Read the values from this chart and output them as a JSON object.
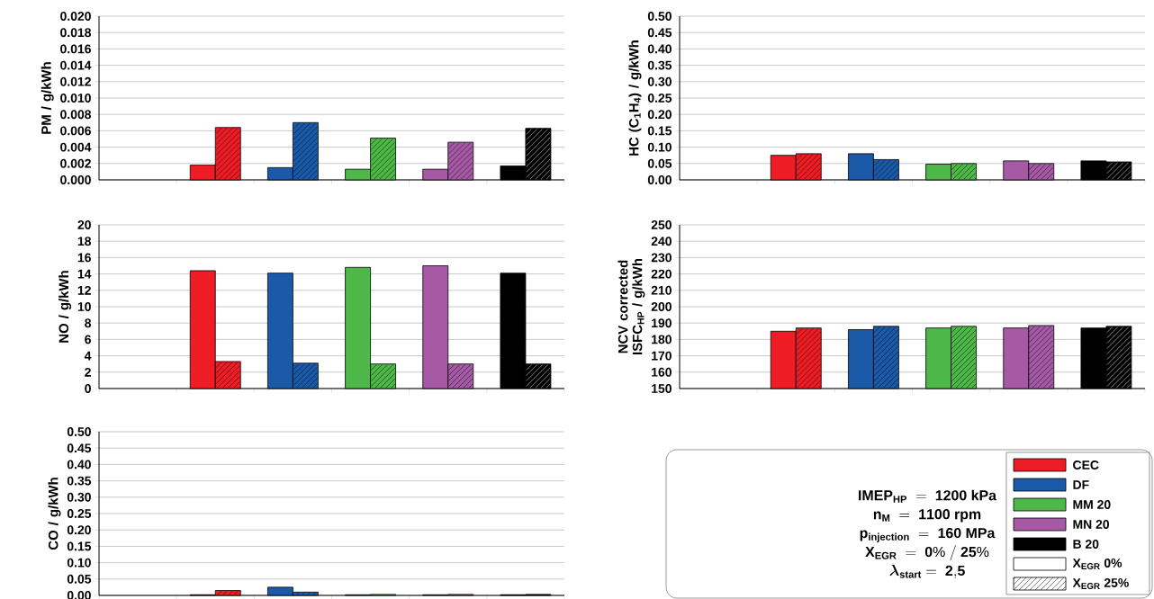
{
  "chart_data": [
    {
      "type": "bar",
      "ylabel": "PM / g/kWh",
      "categories": [
        null,
        null,
        null,
        null,
        null,
        null
      ],
      "ylim": [
        0,
        0.02
      ],
      "yticks": [
        {
          "value": 0,
          "label": "0.000"
        },
        {
          "value": 0.002,
          "label": "0.002"
        },
        {
          "value": 0.004,
          "label": "0.004"
        },
        {
          "value": 0.006,
          "label": "0.006"
        },
        {
          "value": 0.008,
          "label": "0.008"
        },
        {
          "value": 0.01,
          "label": "0.010"
        },
        {
          "value": 0.012,
          "label": "0.012"
        },
        {
          "value": 0.014,
          "label": "0.014"
        },
        {
          "value": 0.016,
          "label": "0.016"
        },
        {
          "value": 0.018,
          "label": "0.018"
        },
        {
          "value": 0.02,
          "label": "0.020"
        }
      ],
      "grid": "y",
      "series": [
        {
          "colors": [
            null,
            "#ee1c25",
            "#1a5aa8",
            "#4db848",
            "#a65aa6",
            "#000000"
          ],
          "values": [
            null,
            0.0018,
            0.0015,
            0.0013,
            0.0013,
            0.0017
          ]
        },
        {
          "colors": [
            null,
            "#ee1c25",
            "#1a5aa8",
            "#4db848",
            "#a65aa6",
            "#000000"
          ],
          "values": [
            null,
            0.0064,
            0.007,
            0.0051,
            0.0046,
            0.0063
          ]
        }
      ]
    },
    {
      "type": "bar",
      "ylabel": "HC (C$_{1}$H$_{4}$) / g/kWh",
      "categories": [
        null,
        null,
        null,
        null,
        null,
        null
      ],
      "ylim": [
        0,
        0.5
      ],
      "yticks": [
        {
          "value": 0,
          "label": "0.00"
        },
        0.05,
        {
          "value": 0.1,
          "label": "0.10"
        },
        0.15,
        {
          "value": 0.2,
          "label": "0.20"
        },
        0.25,
        {
          "value": 0.3,
          "label": "0.30"
        },
        0.35,
        {
          "value": 0.4,
          "label": "0.40"
        },
        0.45,
        {
          "value": 0.5,
          "label": "0.50"
        }
      ],
      "grid": "y",
      "series": [
        {
          "colors": [
            null,
            "#ee1c25",
            "#1a5aa8",
            "#4db848",
            "#a65aa6",
            "#000000"
          ],
          "values": [
            null,
            0.075,
            0.08,
            0.048,
            0.058,
            0.058
          ]
        },
        {
          "colors": [
            null,
            "#ee1c25",
            "#1a5aa8",
            "#4db848",
            "#a65aa6",
            "#000000"
          ],
          "values": [
            null,
            0.08,
            0.062,
            0.05,
            0.05,
            0.055
          ]
        }
      ]
    },
    {
      "type": "bar",
      "ylabel": "NO / g/kWh",
      "categories": [
        null,
        null,
        null,
        null,
        null,
        null
      ],
      "ylim": [
        0,
        20
      ],
      "yticks": [
        0,
        2,
        4,
        6,
        8,
        10,
        12,
        14,
        16,
        18,
        20
      ],
      "grid": "y",
      "series": [
        {
          "colors": [
            null,
            "#ee1c25",
            "#1a5aa8",
            "#4db848",
            "#a65aa6",
            "#000000"
          ],
          "values": [
            null,
            14.4,
            14.1,
            14.8,
            15.0,
            14.1
          ]
        },
        {
          "colors": [
            null,
            "#ee1c25",
            "#1a5aa8",
            "#4db848",
            "#a65aa6",
            "#000000"
          ],
          "values": [
            null,
            3.3,
            3.1,
            3.0,
            3.0,
            3.0
          ]
        }
      ]
    },
    {
      "type": "bar",
      "ylabel": "NCV corrected ISFC$_{HP}$ / g/kWh",
      "categories": [
        null,
        null,
        null,
        null,
        null,
        null
      ],
      "ylim": [
        150,
        250
      ],
      "yticks": [
        150,
        160,
        170,
        180,
        190,
        200,
        210,
        220,
        230,
        240,
        250
      ],
      "grid": "y",
      "series": [
        {
          "colors": [
            null,
            "#ee1c25",
            "#1a5aa8",
            "#4db848",
            "#a65aa6",
            "#000000"
          ],
          "values": [
            null,
            185,
            186,
            187,
            187,
            187
          ]
        },
        {
          "colors": [
            null,
            "#ee1c25",
            "#1a5aa8",
            "#4db848",
            "#a65aa6",
            "#000000"
          ],
          "values": [
            null,
            187,
            188,
            188,
            188.5,
            188
          ]
        }
      ]
    },
    {
      "type": "bar",
      "ylabel": "CO / g/kWh",
      "categories": [
        null,
        null,
        null,
        null,
        null,
        null
      ],
      "ylim": [
        0,
        0.5
      ],
      "yticks": [
        {
          "value": 0,
          "label": "0.00"
        },
        0.05,
        {
          "value": 0.1,
          "label": "0.10"
        },
        0.15,
        {
          "value": 0.2,
          "label": "0.20"
        },
        0.25,
        {
          "value": 0.3,
          "label": "0.30"
        },
        0.35,
        {
          "value": 0.4,
          "label": "0.40"
        },
        0.45,
        {
          "value": 0.5,
          "label": "0.50"
        }
      ],
      "grid": "y",
      "series": [
        {
          "name": "X$_{EGR}$ 0%",
          "colors": [
            null,
            "#ee1c25",
            "#1a5aa8",
            "#4db848",
            "#a65aa6",
            "#000000"
          ],
          "values": [
            null,
            0.002,
            0.025,
            0.002,
            0.002,
            0.002
          ]
        },
        {
          "name": "X$_{EGR}$ 25%",
          "colors": [
            null,
            "#ee1c25",
            "#1a5aa8",
            "#4db848",
            "#a65aa6",
            "#000000"
          ],
          "values": [
            null,
            0.015,
            0.01,
            0.003,
            0.003,
            0.003
          ]
        }
      ]
    },
    {
      "type": "other",
      "annotations": [
        "\\mathbf{IMEP_{HP}\\ =\\ 1200\\ kPa}",
        "\\mathbf{n_{M}\\ =\\ 1100\\ rpm}",
        "\\mathbf{p_{injection}\\ =\\ 160\\ MPa}",
        "\\mathbf{X_{EGR}\\ =\\ 0\\%\\ /\\ 25\\%}",
        "\\boldsymbol{\\lambda}_{\\mathbf{start}}\\mathbf{\\ =\\ 2{,}5}"
      ],
      "categories": [
        "CEC",
        "DF",
        "MM 20",
        "MN 20",
        "B 20"
      ],
      "colors": [
        "#ee1c25",
        "#1a5aa8",
        "#4db848",
        "#a65aa6",
        "#000000"
      ]
    }
  ]
}
